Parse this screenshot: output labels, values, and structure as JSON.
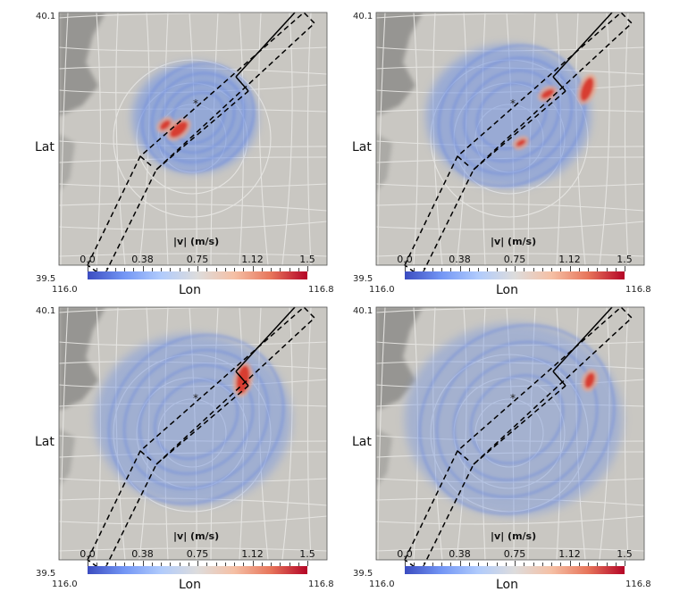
{
  "axis": {
    "lat_label": "Lat",
    "lon_label": "Lon",
    "lat_top": "40.1",
    "lat_bottom": "39.5",
    "lon_left": "116.0",
    "lon_right": "116.8"
  },
  "colorbar": {
    "title": "|v| (m/s)",
    "ticks": [
      "0.0",
      "0.38",
      "0.75",
      "1.12",
      "1.5"
    ],
    "min": 0.0,
    "max": 1.5,
    "colormap": [
      "#3b4cc0",
      "#7396f5",
      "#b0cbfc",
      "#dddcdc",
      "#f5c0a5",
      "#e7755b",
      "#b40426"
    ]
  },
  "colors": {
    "basemap": "#c9c7c2",
    "roads": "#e9e8e5",
    "terrain": "#8e8d8a",
    "wave": "#6b8fe6",
    "peak": "#d8372a",
    "fault_line": "#000000"
  },
  "panels": [
    {
      "id": "a",
      "stage": 1
    },
    {
      "id": "b",
      "stage": 2
    },
    {
      "id": "c",
      "stage": 3
    },
    {
      "id": "d",
      "stage": 4
    }
  ]
}
